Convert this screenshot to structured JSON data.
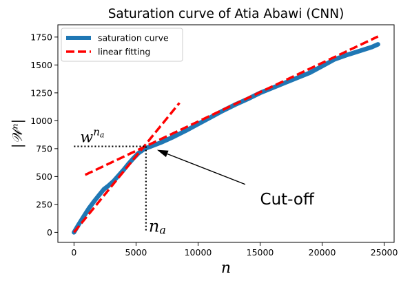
{
  "chart_data": {
    "type": "line",
    "title": "Saturation curve of Atia Abawi (CNN)",
    "xlabel": "n",
    "ylabel": "|𝒲ⁿ|",
    "xlim": [
      -1300,
      25800
    ],
    "ylim": [
      -90,
      1860
    ],
    "xticks": [
      0,
      5000,
      10000,
      15000,
      20000,
      25000
    ],
    "xtick_labels": [
      "0",
      "5000",
      "10000",
      "15000",
      "20000",
      "25000"
    ],
    "yticks": [
      0,
      250,
      500,
      750,
      1000,
      1250,
      1500,
      1750
    ],
    "ytick_labels": [
      "0",
      "250",
      "500",
      "750",
      "1000",
      "1250",
      "1500",
      "1750"
    ],
    "grid": false,
    "legend_position": "top-left",
    "series": [
      {
        "name": "saturation curve",
        "style": "solid-thick",
        "color": "#1f77b4",
        "x": [
          0,
          400,
          800,
          1200,
          1600,
          2000,
          2400,
          2800,
          3200,
          3600,
          4000,
          4400,
          4800,
          5200,
          5700,
          6200,
          7000,
          8000,
          9000,
          10000,
          11000,
          12000,
          13000,
          14000,
          15000,
          16000,
          17000,
          18000,
          19000,
          20000,
          21000,
          22000,
          23000,
          24000,
          24500
        ],
        "y": [
          0,
          75,
          145,
          215,
          275,
          330,
          385,
          420,
          460,
          510,
          560,
          615,
          665,
          710,
          750,
          770,
          805,
          855,
          910,
          970,
          1030,
          1090,
          1145,
          1195,
          1250,
          1295,
          1340,
          1385,
          1430,
          1490,
          1550,
          1590,
          1625,
          1660,
          1685
        ]
      },
      {
        "name": "linear fitting",
        "style": "dashed",
        "color": "#ff0000",
        "segments": [
          {
            "x": [
              0,
              8500
            ],
            "y": [
              0,
              1160
            ]
          },
          {
            "x": [
              900,
              24500
            ],
            "y": [
              515,
              1755
            ]
          }
        ]
      }
    ],
    "annotations": {
      "cutoff_label": "Cut-off",
      "cutoff_point": [
        5800,
        770
      ],
      "cutoff_text_at": [
        15000,
        300
      ],
      "guide_x_label": "n",
      "guide_x_sub": "a",
      "guide_y_label": "w",
      "guide_y_sup_base": "n",
      "guide_y_sup_sub": "a"
    }
  }
}
